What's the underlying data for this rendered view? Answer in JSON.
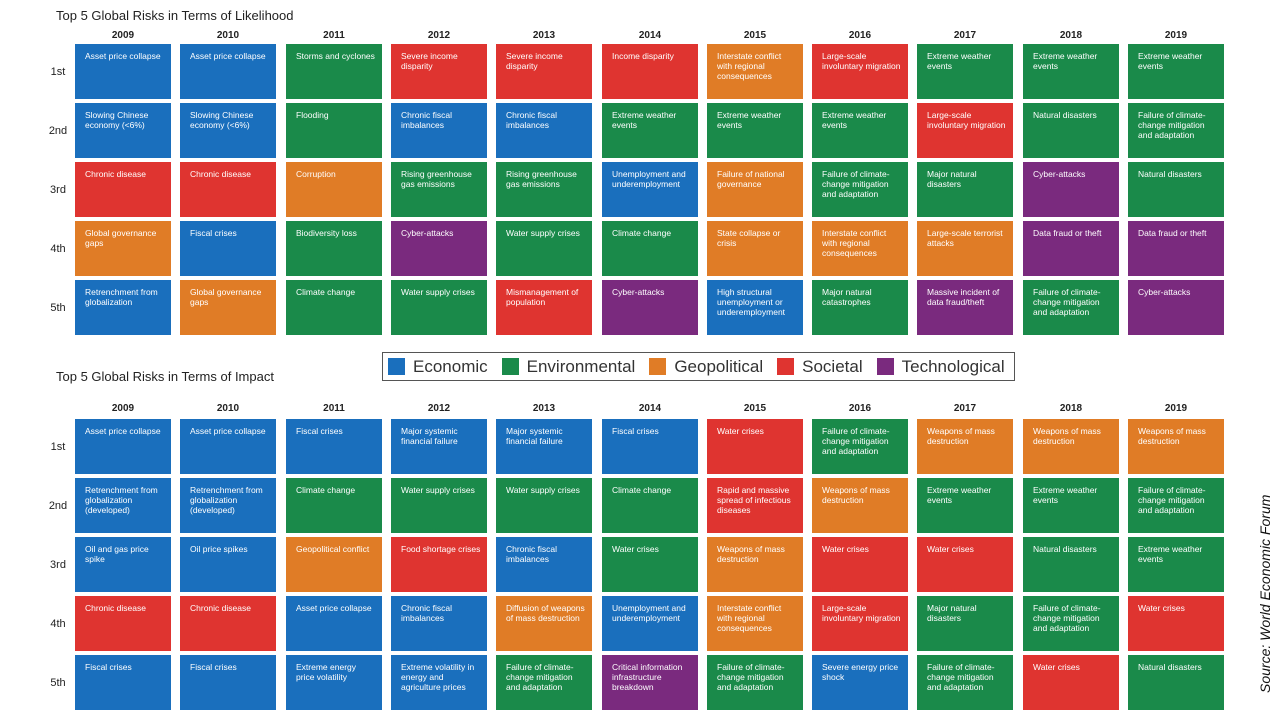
{
  "chart_data": [
    {
      "type": "table",
      "title": "Top 5 Global Risks in Terms of Likelihood",
      "years": [
        "2009",
        "2010",
        "2011",
        "2012",
        "2013",
        "2014",
        "2015",
        "2016",
        "2017",
        "2018",
        "2019"
      ],
      "ranks": [
        "1st",
        "2nd",
        "3rd",
        "4th",
        "5th"
      ],
      "cells": [
        [
          [
            "Asset price collapse",
            "Economic"
          ],
          [
            "Slowing Chinese economy (<6%)",
            "Economic"
          ],
          [
            "Chronic disease",
            "Societal"
          ],
          [
            "Global governance gaps",
            "Geopolitical"
          ],
          [
            "Retrenchment from globalization",
            "Economic"
          ]
        ],
        [
          [
            "Asset price collapse",
            "Economic"
          ],
          [
            "Slowing Chinese economy (<6%)",
            "Economic"
          ],
          [
            "Chronic disease",
            "Societal"
          ],
          [
            "Fiscal crises",
            "Economic"
          ],
          [
            "Global governance gaps",
            "Geopolitical"
          ]
        ],
        [
          [
            "Storms and cyclones",
            "Environmental"
          ],
          [
            "Flooding",
            "Environmental"
          ],
          [
            "Corruption",
            "Geopolitical"
          ],
          [
            "Biodiversity loss",
            "Environmental"
          ],
          [
            "Climate change",
            "Environmental"
          ]
        ],
        [
          [
            "Severe income disparity",
            "Societal"
          ],
          [
            "Chronic fiscal imbalances",
            "Economic"
          ],
          [
            "Rising greenhouse gas emissions",
            "Environmental"
          ],
          [
            "Cyber-attacks",
            "Technological"
          ],
          [
            "Water supply crises",
            "Environmental"
          ]
        ],
        [
          [
            "Severe income disparity",
            "Societal"
          ],
          [
            "Chronic fiscal imbalances",
            "Economic"
          ],
          [
            "Rising greenhouse gas emissions",
            "Environmental"
          ],
          [
            "Water supply crises",
            "Environmental"
          ],
          [
            "Mismanagement of population",
            "Societal"
          ]
        ],
        [
          [
            "Income disparity",
            "Societal"
          ],
          [
            "Extreme weather events",
            "Environmental"
          ],
          [
            "Unemployment and underemployment",
            "Economic"
          ],
          [
            "Climate change",
            "Environmental"
          ],
          [
            "Cyber-attacks",
            "Technological"
          ]
        ],
        [
          [
            "Interstate conflict with regional consequences",
            "Geopolitical"
          ],
          [
            "Extreme weather events",
            "Environmental"
          ],
          [
            "Failure of national governance",
            "Geopolitical"
          ],
          [
            "State collapse or crisis",
            "Geopolitical"
          ],
          [
            "High structural unemployment or underemployment",
            "Economic"
          ]
        ],
        [
          [
            "Large-scale involuntary migration",
            "Societal"
          ],
          [
            "Extreme weather events",
            "Environmental"
          ],
          [
            "Failure of climate-change mitigation and adaptation",
            "Environmental"
          ],
          [
            "Interstate conflict with regional consequences",
            "Geopolitical"
          ],
          [
            "Major natural catastrophes",
            "Environmental"
          ]
        ],
        [
          [
            "Extreme weather events",
            "Environmental"
          ],
          [
            "Large-scale involuntary migration",
            "Societal"
          ],
          [
            "Major natural disasters",
            "Environmental"
          ],
          [
            "Large-scale terrorist attacks",
            "Geopolitical"
          ],
          [
            "Massive incident of data fraud/theft",
            "Technological"
          ]
        ],
        [
          [
            "Extreme weather events",
            "Environmental"
          ],
          [
            "Natural disasters",
            "Environmental"
          ],
          [
            "Cyber-attacks",
            "Technological"
          ],
          [
            "Data fraud or theft",
            "Technological"
          ],
          [
            "Failure of climate-change mitigation and adaptation",
            "Environmental"
          ]
        ],
        [
          [
            "Extreme weather events",
            "Environmental"
          ],
          [
            "Failure of climate-change mitigation and adaptation",
            "Environmental"
          ],
          [
            "Natural disasters",
            "Environmental"
          ],
          [
            "Data fraud or theft",
            "Technological"
          ],
          [
            "Cyber-attacks",
            "Technological"
          ]
        ]
      ]
    },
    {
      "type": "table",
      "title": "Top 5 Global Risks in Terms of Impact",
      "years": [
        "2009",
        "2010",
        "2011",
        "2012",
        "2013",
        "2014",
        "2015",
        "2016",
        "2017",
        "2018",
        "2019"
      ],
      "ranks": [
        "1st",
        "2nd",
        "3rd",
        "4th",
        "5th"
      ],
      "cells": [
        [
          [
            "Asset price collapse",
            "Economic"
          ],
          [
            "Retrenchment from globalization (developed)",
            "Economic"
          ],
          [
            "Oil and gas price spike",
            "Economic"
          ],
          [
            "Chronic disease",
            "Societal"
          ],
          [
            "Fiscal crises",
            "Economic"
          ]
        ],
        [
          [
            "Asset price collapse",
            "Economic"
          ],
          [
            "Retrenchment from globalization (developed)",
            "Economic"
          ],
          [
            "Oil price spikes",
            "Economic"
          ],
          [
            "Chronic disease",
            "Societal"
          ],
          [
            "Fiscal crises",
            "Economic"
          ]
        ],
        [
          [
            "Fiscal crises",
            "Economic"
          ],
          [
            "Climate change",
            "Environmental"
          ],
          [
            "Geopolitical conflict",
            "Geopolitical"
          ],
          [
            "Asset price collapse",
            "Economic"
          ],
          [
            "Extreme energy price volatility",
            "Economic"
          ]
        ],
        [
          [
            "Major systemic financial failure",
            "Economic"
          ],
          [
            "Water supply crises",
            "Environmental"
          ],
          [
            "Food shortage crises",
            "Societal"
          ],
          [
            "Chronic fiscal imbalances",
            "Economic"
          ],
          [
            "Extreme volatility in energy and agriculture prices",
            "Economic"
          ]
        ],
        [
          [
            "Major systemic financial failure",
            "Economic"
          ],
          [
            "Water supply crises",
            "Environmental"
          ],
          [
            "Chronic fiscal imbalances",
            "Economic"
          ],
          [
            "Diffusion of weapons of mass destruction",
            "Geopolitical"
          ],
          [
            "Failure of climate-change mitigation and adaptation",
            "Environmental"
          ]
        ],
        [
          [
            "Fiscal crises",
            "Economic"
          ],
          [
            "Climate change",
            "Environmental"
          ],
          [
            "Water crises",
            "Environmental"
          ],
          [
            "Unemployment and underemployment",
            "Economic"
          ],
          [
            "Critical information infrastructure breakdown",
            "Technological"
          ]
        ],
        [
          [
            "Water crises",
            "Societal"
          ],
          [
            "Rapid and massive spread of infectious diseases",
            "Societal"
          ],
          [
            "Weapons of mass destruction",
            "Geopolitical"
          ],
          [
            "Interstate conflict with regional consequences",
            "Geopolitical"
          ],
          [
            "Failure of climate-change mitigation and adaptation",
            "Environmental"
          ]
        ],
        [
          [
            "Failure of climate-change mitigation and adaptation",
            "Environmental"
          ],
          [
            "Weapons of mass destruction",
            "Geopolitical"
          ],
          [
            "Water crises",
            "Societal"
          ],
          [
            "Large-scale involuntary migration",
            "Societal"
          ],
          [
            "Severe energy price shock",
            "Economic"
          ]
        ],
        [
          [
            "Weapons of mass destruction",
            "Geopolitical"
          ],
          [
            "Extreme weather events",
            "Environmental"
          ],
          [
            "Water crises",
            "Societal"
          ],
          [
            "Major natural disasters",
            "Environmental"
          ],
          [
            "Failure of climate-change mitigation and adaptation",
            "Environmental"
          ]
        ],
        [
          [
            "Weapons of mass destruction",
            "Geopolitical"
          ],
          [
            "Extreme weather events",
            "Environmental"
          ],
          [
            "Natural disasters",
            "Environmental"
          ],
          [
            "Failure of climate-change mitigation and adaptation",
            "Environmental"
          ],
          [
            "Water crises",
            "Societal"
          ]
        ],
        [
          [
            "Weapons of mass destruction",
            "Geopolitical"
          ],
          [
            "Failure of climate-change mitigation and adaptation",
            "Environmental"
          ],
          [
            "Extreme weather events",
            "Environmental"
          ],
          [
            "Water crises",
            "Societal"
          ],
          [
            "Natural disasters",
            "Environmental"
          ]
        ]
      ]
    }
  ],
  "legend": [
    {
      "label": "Economic",
      "color": "#1a6fbd"
    },
    {
      "label": "Environmental",
      "color": "#1a8a4a"
    },
    {
      "label": "Geopolitical",
      "color": "#e07c26"
    },
    {
      "label": "Societal",
      "color": "#df3430"
    },
    {
      "label": "Technological",
      "color": "#7a2a7e"
    }
  ],
  "source": "Source: World Economic Forum"
}
